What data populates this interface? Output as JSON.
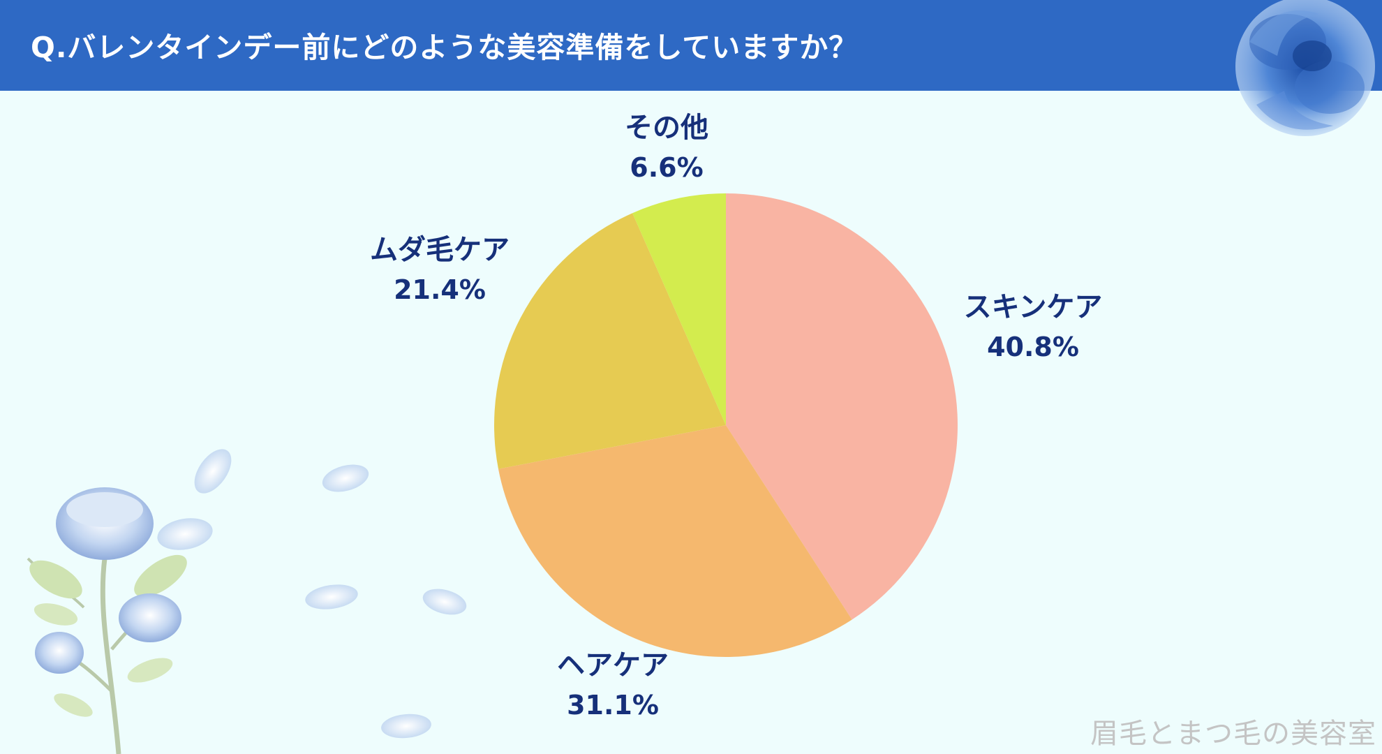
{
  "title": "Q.バレンタインデー前にどのような美容準備をしていますか？",
  "watermark": "眉毛とまつ毛の美容室",
  "chart_data": {
    "type": "pie",
    "title": "Q.バレンタインデー前にどのような美容準備をしていますか？",
    "slices": [
      {
        "label": "スキンケア",
        "value": 40.8,
        "display": "40.8%",
        "color": "#f9b4a3"
      },
      {
        "label": "ヘアケア",
        "value": 31.1,
        "display": "31.1%",
        "color": "#f5b86e"
      },
      {
        "label": "ムダ毛ケア",
        "value": 21.4,
        "display": "21.4%",
        "color": "#e6cb52"
      },
      {
        "label": "その他",
        "value": 6.6,
        "display": "6.6%",
        "color": "#d3ec4e"
      }
    ],
    "start": "12 o'clock",
    "direction": "clockwise"
  },
  "colors": {
    "title_bar": "#2e69c4",
    "background": "#eefdfd",
    "label_text": "#16307a"
  }
}
